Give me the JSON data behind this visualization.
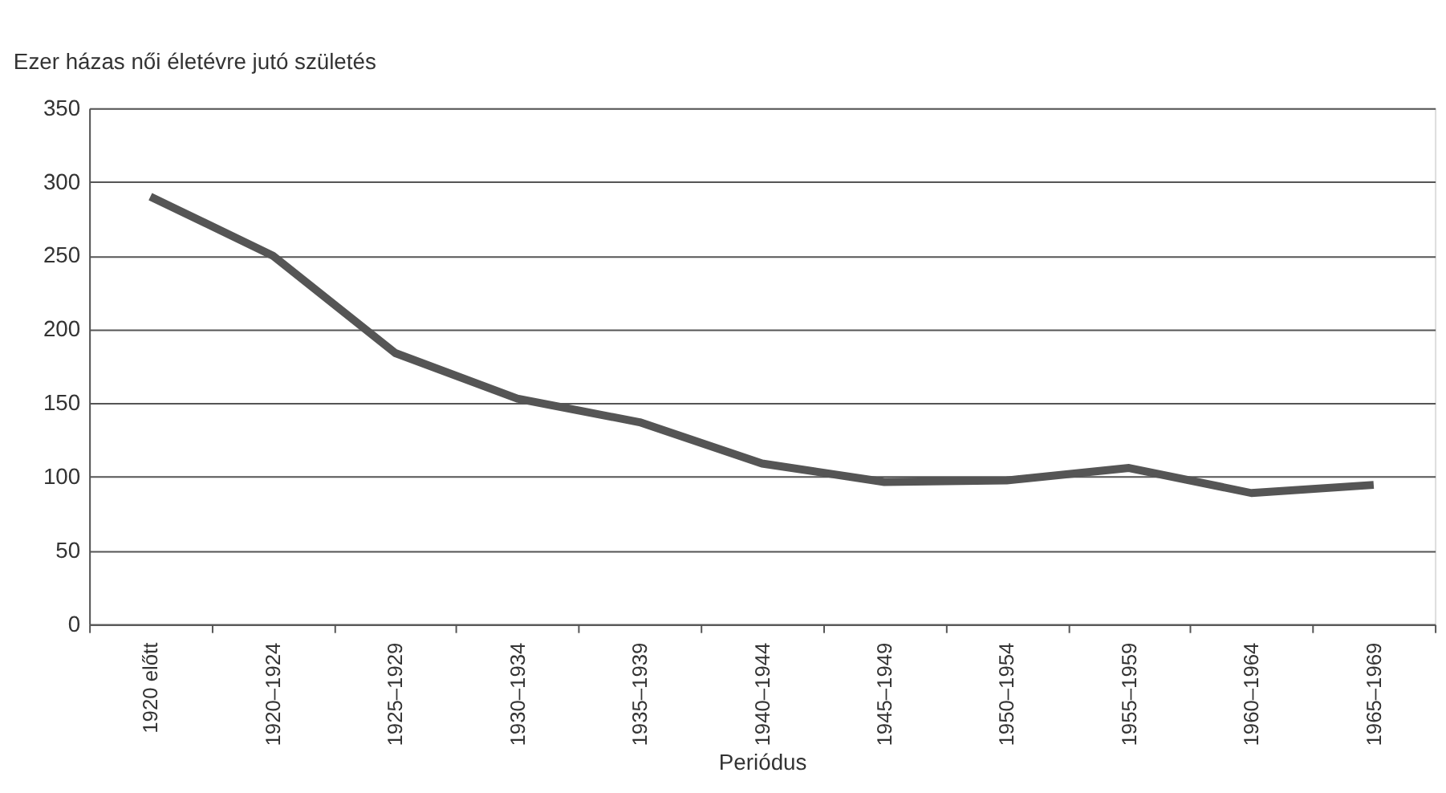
{
  "chart_data": {
    "type": "line",
    "ylabel": "Ezer házas női életévre jutó születés",
    "xlabel": "Periódus",
    "categories": [
      "1920 előtt",
      "1920–1924",
      "1925–1929",
      "1930–1934",
      "1935–1939",
      "1940–1944",
      "1945–1949",
      "1950–1954",
      "1955–1959",
      "1960–1964",
      "1965–1969"
    ],
    "series": [
      {
        "color": "#555555",
        "values": [
          290,
          250,
          184,
          153,
          137,
          109,
          96.5,
          97.5,
          106,
          89,
          94.5
        ]
      }
    ],
    "ylim": [
      0,
      350
    ],
    "yticks": [
      0,
      50,
      100,
      150,
      200,
      250,
      300,
      350
    ],
    "grid": "y",
    "legend": false,
    "marker": "none",
    "line_style": "solid"
  }
}
